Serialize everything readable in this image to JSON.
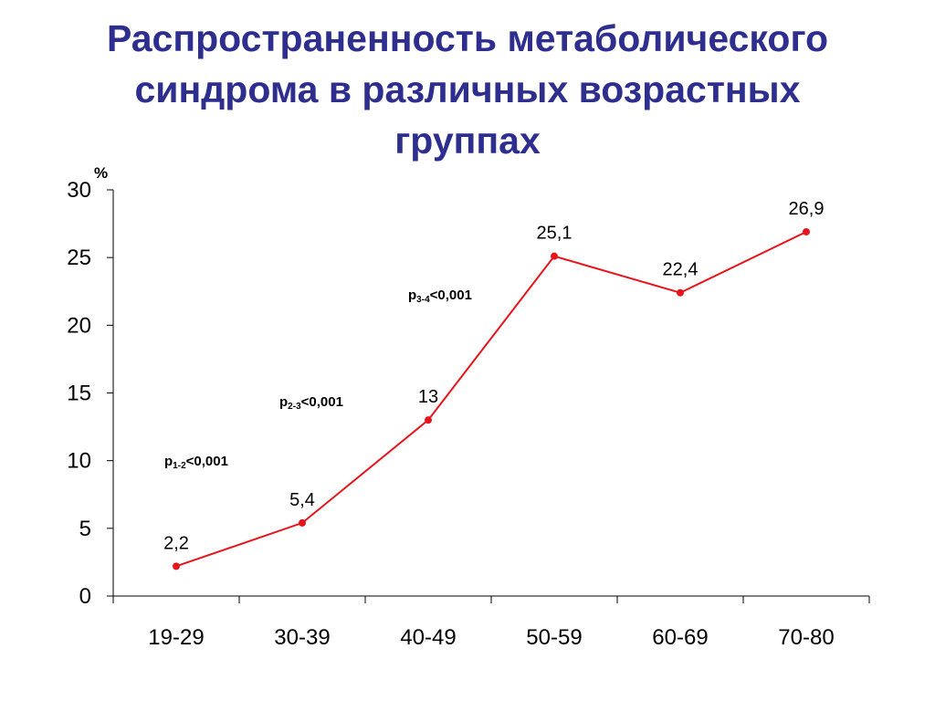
{
  "title": {
    "line1": "Распространенность метаболического",
    "line2": "синдрома в различных возрастных",
    "line3": "группах"
  },
  "chart_data": {
    "type": "line",
    "title": "Распространенность метаболического синдрома в различных возрастных группах",
    "xlabel": "",
    "ylabel": "%",
    "ylim": [
      0,
      30
    ],
    "yticks": [
      0,
      5,
      10,
      15,
      20,
      25,
      30
    ],
    "categories": [
      "19-29",
      "30-39",
      "40-49",
      "50-59",
      "60-69",
      "70-80"
    ],
    "series": [
      {
        "values": [
          2.2,
          5.4,
          13,
          25.1,
          22.4,
          26.9
        ],
        "labels": [
          "2,2",
          "5,4",
          "13",
          "25,1",
          "22,4",
          "26,9"
        ],
        "color": "#E8141B"
      }
    ],
    "grid": false,
    "legend": "none",
    "annotations": [
      {
        "prefix": "р",
        "sub": "1-2",
        "text": "<0,001"
      },
      {
        "prefix": "р",
        "sub": "2-3",
        "text": "<0,001"
      },
      {
        "prefix": "р",
        "sub": "3-4",
        "text": "<0,001"
      }
    ]
  }
}
